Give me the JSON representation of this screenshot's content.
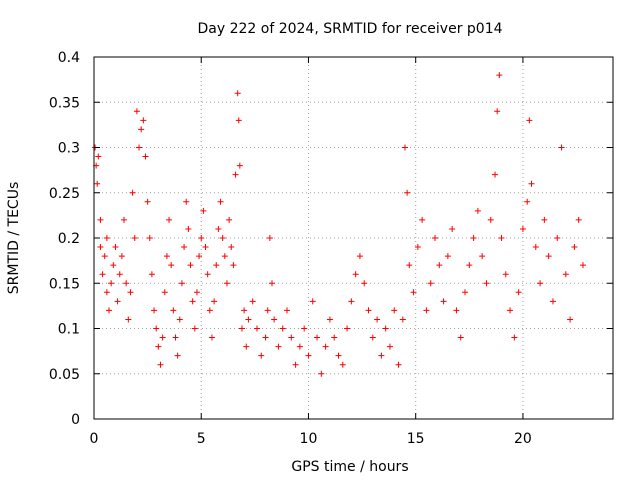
{
  "chart_data": {
    "type": "scatter",
    "title": "Day 222 of 2024, SRMTID for receiver p014",
    "xlabel": "GPS time / hours",
    "ylabel": "SRMTID / TECUs",
    "xlim": [
      0,
      24.2
    ],
    "ylim": [
      0,
      0.4
    ],
    "xticks": [
      0,
      5,
      10,
      15,
      20
    ],
    "yticks": [
      0,
      0.05,
      0.1,
      0.15,
      0.2,
      0.25,
      0.3,
      0.35,
      0.4
    ],
    "xtick_labels": [
      "0",
      "5",
      "10",
      "15",
      "20"
    ],
    "ytick_labels": [
      "0",
      "0.05",
      "0.1",
      "0.15",
      "0.2",
      "0.25",
      "0.3",
      "0.35",
      "0.4"
    ],
    "grid": true,
    "marker": "+",
    "series": [
      {
        "name": "SRMTID",
        "color": "#ff0000",
        "points": [
          [
            0.05,
            0.3
          ],
          [
            0.1,
            0.28
          ],
          [
            0.15,
            0.26
          ],
          [
            0.2,
            0.29
          ],
          [
            0.3,
            0.22
          ],
          [
            0.3,
            0.19
          ],
          [
            0.4,
            0.16
          ],
          [
            0.5,
            0.18
          ],
          [
            0.6,
            0.2
          ],
          [
            0.6,
            0.14
          ],
          [
            0.7,
            0.12
          ],
          [
            0.8,
            0.15
          ],
          [
            0.9,
            0.17
          ],
          [
            1.0,
            0.19
          ],
          [
            1.1,
            0.13
          ],
          [
            1.2,
            0.16
          ],
          [
            1.3,
            0.18
          ],
          [
            1.4,
            0.22
          ],
          [
            1.5,
            0.15
          ],
          [
            1.6,
            0.11
          ],
          [
            1.7,
            0.14
          ],
          [
            1.8,
            0.25
          ],
          [
            1.9,
            0.2
          ],
          [
            2.0,
            0.34
          ],
          [
            2.1,
            0.3
          ],
          [
            2.2,
            0.32
          ],
          [
            2.3,
            0.33
          ],
          [
            2.4,
            0.29
          ],
          [
            2.5,
            0.24
          ],
          [
            2.6,
            0.2
          ],
          [
            2.7,
            0.16
          ],
          [
            2.8,
            0.12
          ],
          [
            2.9,
            0.1
          ],
          [
            3.0,
            0.08
          ],
          [
            3.1,
            0.06
          ],
          [
            3.2,
            0.09
          ],
          [
            3.3,
            0.14
          ],
          [
            3.4,
            0.18
          ],
          [
            3.5,
            0.22
          ],
          [
            3.6,
            0.17
          ],
          [
            3.7,
            0.12
          ],
          [
            3.8,
            0.09
          ],
          [
            3.9,
            0.07
          ],
          [
            4.0,
            0.11
          ],
          [
            4.1,
            0.15
          ],
          [
            4.2,
            0.19
          ],
          [
            4.3,
            0.24
          ],
          [
            4.4,
            0.21
          ],
          [
            4.5,
            0.17
          ],
          [
            4.6,
            0.13
          ],
          [
            4.7,
            0.1
          ],
          [
            4.8,
            0.14
          ],
          [
            4.9,
            0.18
          ],
          [
            5.0,
            0.2
          ],
          [
            5.1,
            0.23
          ],
          [
            5.2,
            0.19
          ],
          [
            5.3,
            0.16
          ],
          [
            5.4,
            0.12
          ],
          [
            5.5,
            0.09
          ],
          [
            5.6,
            0.13
          ],
          [
            5.7,
            0.17
          ],
          [
            5.8,
            0.21
          ],
          [
            5.9,
            0.24
          ],
          [
            6.0,
            0.2
          ],
          [
            6.1,
            0.18
          ],
          [
            6.2,
            0.15
          ],
          [
            6.3,
            0.22
          ],
          [
            6.4,
            0.19
          ],
          [
            6.5,
            0.17
          ],
          [
            6.6,
            0.27
          ],
          [
            6.7,
            0.36
          ],
          [
            6.75,
            0.33
          ],
          [
            6.8,
            0.28
          ],
          [
            6.9,
            0.1
          ],
          [
            7.0,
            0.12
          ],
          [
            7.1,
            0.08
          ],
          [
            7.2,
            0.11
          ],
          [
            7.4,
            0.13
          ],
          [
            7.6,
            0.1
          ],
          [
            7.8,
            0.07
          ],
          [
            8.0,
            0.09
          ],
          [
            8.1,
            0.12
          ],
          [
            8.2,
            0.2
          ],
          [
            8.3,
            0.15
          ],
          [
            8.4,
            0.11
          ],
          [
            8.6,
            0.08
          ],
          [
            8.8,
            0.1
          ],
          [
            9.0,
            0.12
          ],
          [
            9.2,
            0.09
          ],
          [
            9.4,
            0.06
          ],
          [
            9.6,
            0.08
          ],
          [
            9.8,
            0.1
          ],
          [
            10.0,
            0.07
          ],
          [
            10.2,
            0.13
          ],
          [
            10.4,
            0.09
          ],
          [
            10.6,
            0.05
          ],
          [
            10.8,
            0.08
          ],
          [
            11.0,
            0.11
          ],
          [
            11.2,
            0.09
          ],
          [
            11.4,
            0.07
          ],
          [
            11.6,
            0.06
          ],
          [
            11.8,
            0.1
          ],
          [
            12.0,
            0.13
          ],
          [
            12.2,
            0.16
          ],
          [
            12.4,
            0.18
          ],
          [
            12.6,
            0.15
          ],
          [
            12.8,
            0.12
          ],
          [
            13.0,
            0.09
          ],
          [
            13.2,
            0.11
          ],
          [
            13.4,
            0.07
          ],
          [
            13.6,
            0.1
          ],
          [
            13.8,
            0.08
          ],
          [
            14.0,
            0.12
          ],
          [
            14.2,
            0.06
          ],
          [
            14.4,
            0.11
          ],
          [
            14.5,
            0.3
          ],
          [
            14.6,
            0.25
          ],
          [
            14.7,
            0.17
          ],
          [
            14.9,
            0.14
          ],
          [
            15.1,
            0.19
          ],
          [
            15.3,
            0.22
          ],
          [
            15.5,
            0.12
          ],
          [
            15.7,
            0.15
          ],
          [
            15.9,
            0.2
          ],
          [
            16.1,
            0.17
          ],
          [
            16.3,
            0.13
          ],
          [
            16.5,
            0.18
          ],
          [
            16.7,
            0.21
          ],
          [
            16.9,
            0.12
          ],
          [
            17.1,
            0.09
          ],
          [
            17.3,
            0.14
          ],
          [
            17.5,
            0.17
          ],
          [
            17.7,
            0.2
          ],
          [
            17.9,
            0.23
          ],
          [
            18.1,
            0.18
          ],
          [
            18.3,
            0.15
          ],
          [
            18.5,
            0.22
          ],
          [
            18.7,
            0.27
          ],
          [
            18.8,
            0.34
          ],
          [
            18.9,
            0.38
          ],
          [
            19.0,
            0.2
          ],
          [
            19.2,
            0.16
          ],
          [
            19.4,
            0.12
          ],
          [
            19.6,
            0.09
          ],
          [
            19.8,
            0.14
          ],
          [
            20.0,
            0.21
          ],
          [
            20.2,
            0.24
          ],
          [
            20.3,
            0.33
          ],
          [
            20.4,
            0.26
          ],
          [
            20.6,
            0.19
          ],
          [
            20.8,
            0.15
          ],
          [
            21.0,
            0.22
          ],
          [
            21.2,
            0.18
          ],
          [
            21.4,
            0.13
          ],
          [
            21.6,
            0.2
          ],
          [
            21.8,
            0.3
          ],
          [
            22.0,
            0.16
          ],
          [
            22.2,
            0.11
          ],
          [
            22.4,
            0.19
          ],
          [
            22.6,
            0.22
          ],
          [
            22.8,
            0.17
          ]
        ]
      }
    ]
  }
}
